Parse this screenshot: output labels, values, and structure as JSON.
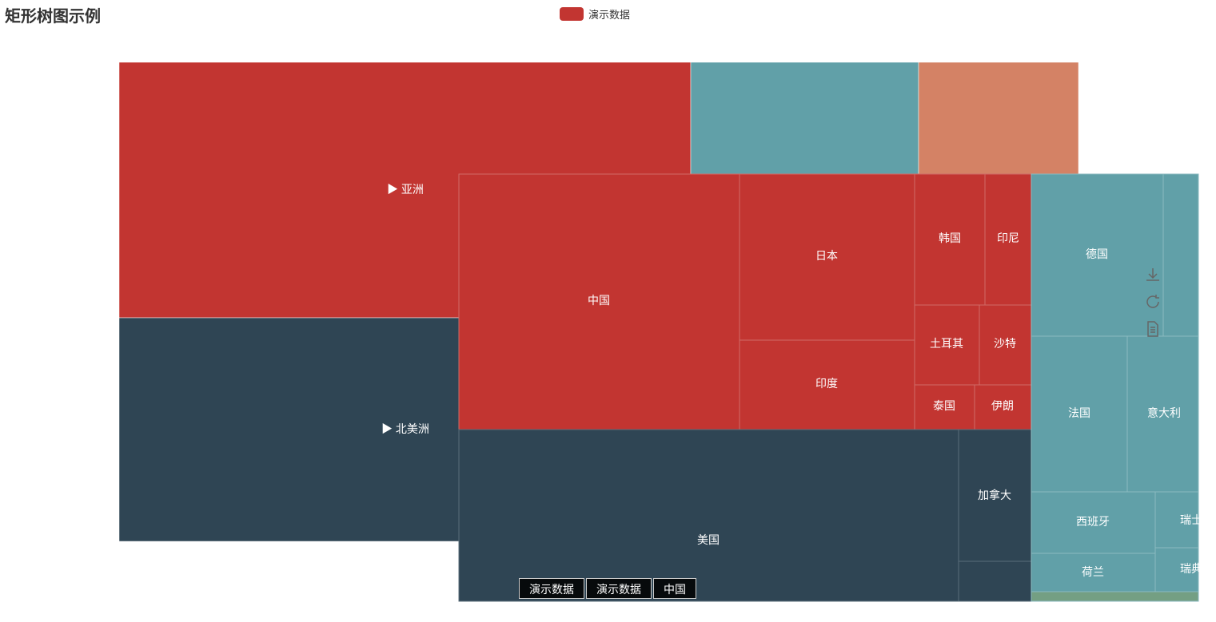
{
  "title": "矩形树图示例",
  "legend": {
    "label": "演示数据",
    "color": "#c23531"
  },
  "colors": {
    "asia": "#c23531",
    "north_america": "#2f4554",
    "europe": "#61a0a8",
    "other": "#d48265",
    "europe_small": "#749f83"
  },
  "chart_data": {
    "type": "treemap",
    "series_name": "演示数据",
    "levels": [
      {
        "name": "▶ 亚洲",
        "color": "#c23531",
        "children": [
          "中国",
          "日本",
          "印度",
          "韩国",
          "印尼",
          "土耳其",
          "沙特",
          "泰国",
          "伊朗"
        ]
      },
      {
        "name": "▶ 北美洲",
        "color": "#2f4554",
        "children": [
          "美国",
          "加拿大"
        ]
      },
      {
        "name": "",
        "color": "#61a0a8",
        "children": [
          "德国",
          "法国",
          "意大利",
          "西班牙",
          "荷兰",
          "瑞士",
          "瑞典"
        ]
      },
      {
        "name": "",
        "color": "#d48265",
        "children": []
      }
    ]
  },
  "toolbox": {
    "icons": [
      "save-as-image-icon",
      "restore-icon",
      "data-view-icon"
    ]
  },
  "breadcrumb": [
    "演示数据",
    "演示数据",
    "中国"
  ]
}
